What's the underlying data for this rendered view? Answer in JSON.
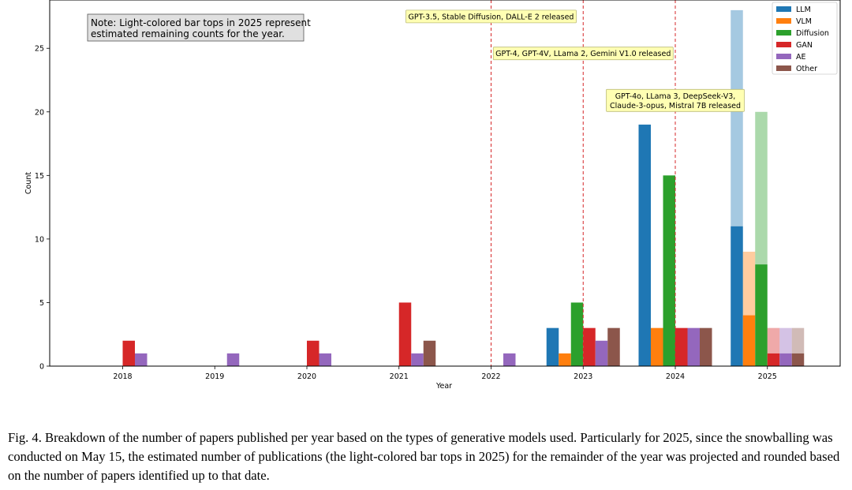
{
  "chart_data": {
    "type": "bar",
    "xlabel": "Year",
    "ylabel": "Count",
    "ylim": [
      0,
      28.8
    ],
    "yticks": [
      0,
      5,
      10,
      15,
      20,
      25
    ],
    "grid": false,
    "legend_position": "top-right",
    "categories": [
      "2018",
      "2019",
      "2020",
      "2021",
      "2022",
      "2023",
      "2024",
      "2025"
    ],
    "series": [
      {
        "name": "LLM",
        "color": "#1f77b4",
        "values": [
          0,
          0,
          0,
          0,
          0,
          3,
          19,
          11
        ],
        "estimated_total_2025": 28
      },
      {
        "name": "VLM",
        "color": "#ff7f0e",
        "values": [
          0,
          0,
          0,
          0,
          0,
          1,
          3,
          4
        ],
        "estimated_total_2025": 9
      },
      {
        "name": "Diffusion",
        "color": "#2ca02c",
        "values": [
          0,
          0,
          0,
          0,
          0,
          5,
          15,
          8
        ],
        "estimated_total_2025": 20
      },
      {
        "name": "GAN",
        "color": "#d62728",
        "values": [
          2,
          0,
          2,
          5,
          0,
          3,
          3,
          1
        ],
        "estimated_total_2025": 3
      },
      {
        "name": "AE",
        "color": "#9467bd",
        "values": [
          1,
          1,
          1,
          1,
          1,
          2,
          3,
          1
        ],
        "estimated_total_2025": 3
      },
      {
        "name": "Other",
        "color": "#8c564b",
        "values": [
          0,
          0,
          0,
          2,
          0,
          3,
          3,
          1
        ],
        "estimated_total_2025": 3
      }
    ],
    "vlines": [
      {
        "x": 2022,
        "label": "GPT-3.5, Stable Diffusion, DALL-E 2 released"
      },
      {
        "x": 2023,
        "label": "GPT-4, GPT-4V, LLama 2, Gemini V1.0 released"
      },
      {
        "x": 2024,
        "label": "GPT-4o, LLama 3, DeepSeek-V3,\nClaude-3-opus, Mistral 7B released"
      }
    ],
    "note": "Note: Light-colored bar tops in 2025 represent\nestimated remaining counts for the year."
  },
  "caption": "Fig. 4.  Breakdown of the number of papers published per year based on the types of generative models used. Particularly for 2025, since the snowballing was conducted on May 15, the estimated number of publications (the light-colored bar tops in 2025) for the remainder of the year was projected and rounded based on the number of papers identified up to that date."
}
